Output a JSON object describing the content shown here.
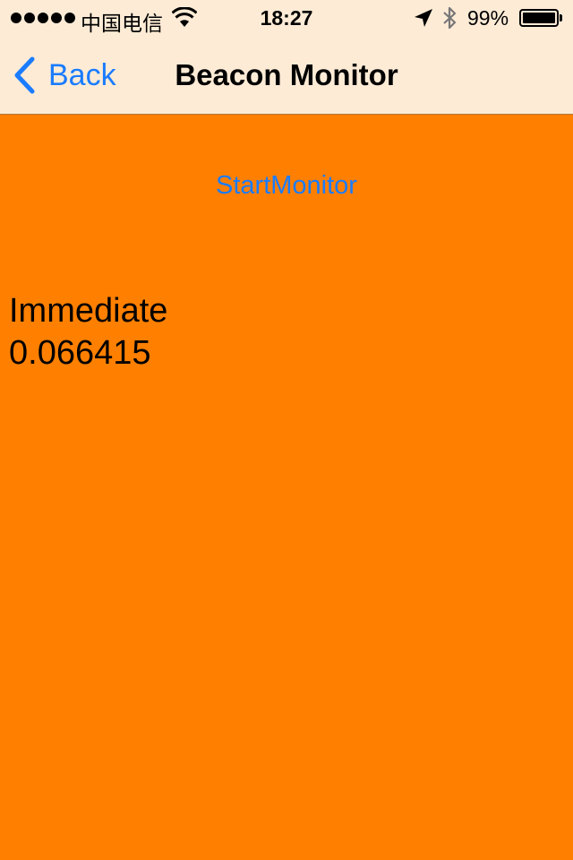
{
  "status_bar": {
    "carrier": "中国电信",
    "time": "18:27",
    "battery_percent": "99%",
    "battery_level": 0.99,
    "signal_bars": 5,
    "icons": [
      "wifi-icon",
      "location-arrow-icon",
      "bluetooth-icon",
      "battery-icon"
    ]
  },
  "nav": {
    "back_label": "Back",
    "title": "Beacon Monitor"
  },
  "main": {
    "start_button_label": "StartMonitor",
    "proximity": "Immediate",
    "distance": "0.066415"
  },
  "colors": {
    "background": "#ff8000",
    "nav_background": "#fdebd6",
    "accent": "#1a7cff"
  }
}
